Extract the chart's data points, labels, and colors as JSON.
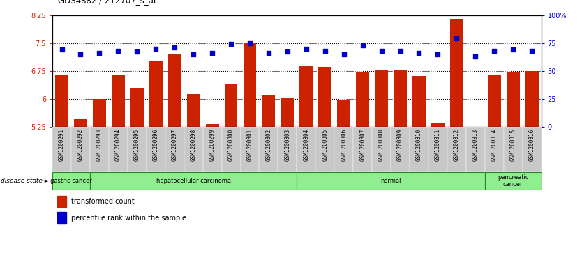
{
  "title": "GDS4882 / 212707_s_at",
  "samples": [
    "GSM1200291",
    "GSM1200292",
    "GSM1200293",
    "GSM1200294",
    "GSM1200295",
    "GSM1200296",
    "GSM1200297",
    "GSM1200298",
    "GSM1200299",
    "GSM1200300",
    "GSM1200301",
    "GSM1200302",
    "GSM1200303",
    "GSM1200304",
    "GSM1200305",
    "GSM1200306",
    "GSM1200307",
    "GSM1200308",
    "GSM1200309",
    "GSM1200310",
    "GSM1200311",
    "GSM1200312",
    "GSM1200313",
    "GSM1200314",
    "GSM1200315",
    "GSM1200316"
  ],
  "red_values": [
    6.63,
    5.45,
    5.99,
    6.63,
    6.3,
    7.0,
    7.19,
    6.13,
    5.32,
    6.38,
    7.51,
    6.09,
    6.01,
    6.88,
    6.85,
    5.95,
    6.7,
    6.76,
    6.79,
    6.62,
    5.34,
    8.15,
    5.25,
    6.63,
    6.73,
    6.75
  ],
  "blue_values": [
    69,
    65,
    66,
    68,
    67,
    70,
    71,
    65,
    66,
    74,
    75,
    66,
    67,
    70,
    68,
    65,
    73,
    68,
    68,
    66,
    65,
    79,
    63,
    68,
    69,
    68
  ],
  "ylim_left": [
    5.25,
    8.25
  ],
  "ylim_right": [
    0,
    100
  ],
  "yticks_left": [
    5.25,
    6.0,
    6.75,
    7.5,
    8.25
  ],
  "ytick_labels_left": [
    "5.25",
    "6",
    "6.75",
    "7.5",
    "8.25"
  ],
  "yticks_right": [
    0,
    25,
    50,
    75,
    100
  ],
  "ytick_labels_right": [
    "0",
    "25",
    "50",
    "75",
    "100%"
  ],
  "bar_color": "#CC2200",
  "dot_color": "#0000CC",
  "group_color": "#90EE90",
  "group_border_color": "#228B22",
  "tick_bg_color": "#C8C8C8",
  "groups": [
    {
      "label": "gastric cancer",
      "start": 0,
      "end": 2
    },
    {
      "label": "hepatocellular carcinoma",
      "start": 2,
      "end": 13
    },
    {
      "label": "normal",
      "start": 13,
      "end": 23
    },
    {
      "label": "pancreatic\ncancer",
      "start": 23,
      "end": 26
    }
  ]
}
